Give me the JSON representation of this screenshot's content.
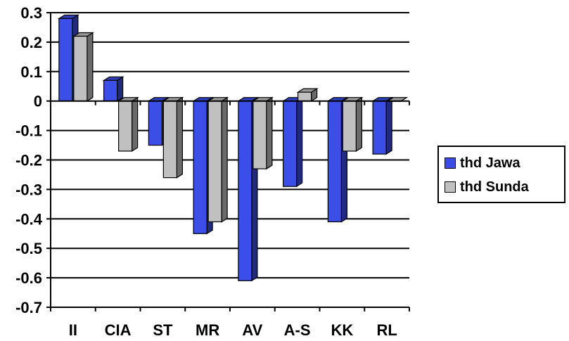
{
  "chart_data": {
    "type": "bar",
    "categories": [
      "II",
      "CIA",
      "ST",
      "MR",
      "AV",
      "A-S",
      "KK",
      "RL"
    ],
    "series": [
      {
        "name": "thd Jawa",
        "color": "#3b4fe8",
        "values": [
          0.28,
          0.07,
          -0.15,
          -0.45,
          -0.61,
          -0.29,
          -0.41,
          -0.18
        ]
      },
      {
        "name": "thd Sunda",
        "color": "#c0c0c0",
        "values": [
          0.22,
          -0.17,
          -0.26,
          -0.41,
          -0.23,
          0.03,
          -0.17,
          0.0
        ]
      }
    ],
    "ylim": [
      -0.7,
      0.3
    ],
    "yticks": [
      0.3,
      0.2,
      0.1,
      0,
      -0.1,
      -0.2,
      -0.3,
      -0.4,
      -0.5,
      -0.6,
      -0.7
    ],
    "ytick_labels": [
      "0.3",
      "0.2",
      "0.1",
      "0",
      "-0.1",
      "-0.2",
      "-0.3",
      "-0.4",
      "-0.5",
      "-0.6",
      "-0.7"
    ],
    "grid": true,
    "legend_position": "right",
    "three_d": true
  }
}
